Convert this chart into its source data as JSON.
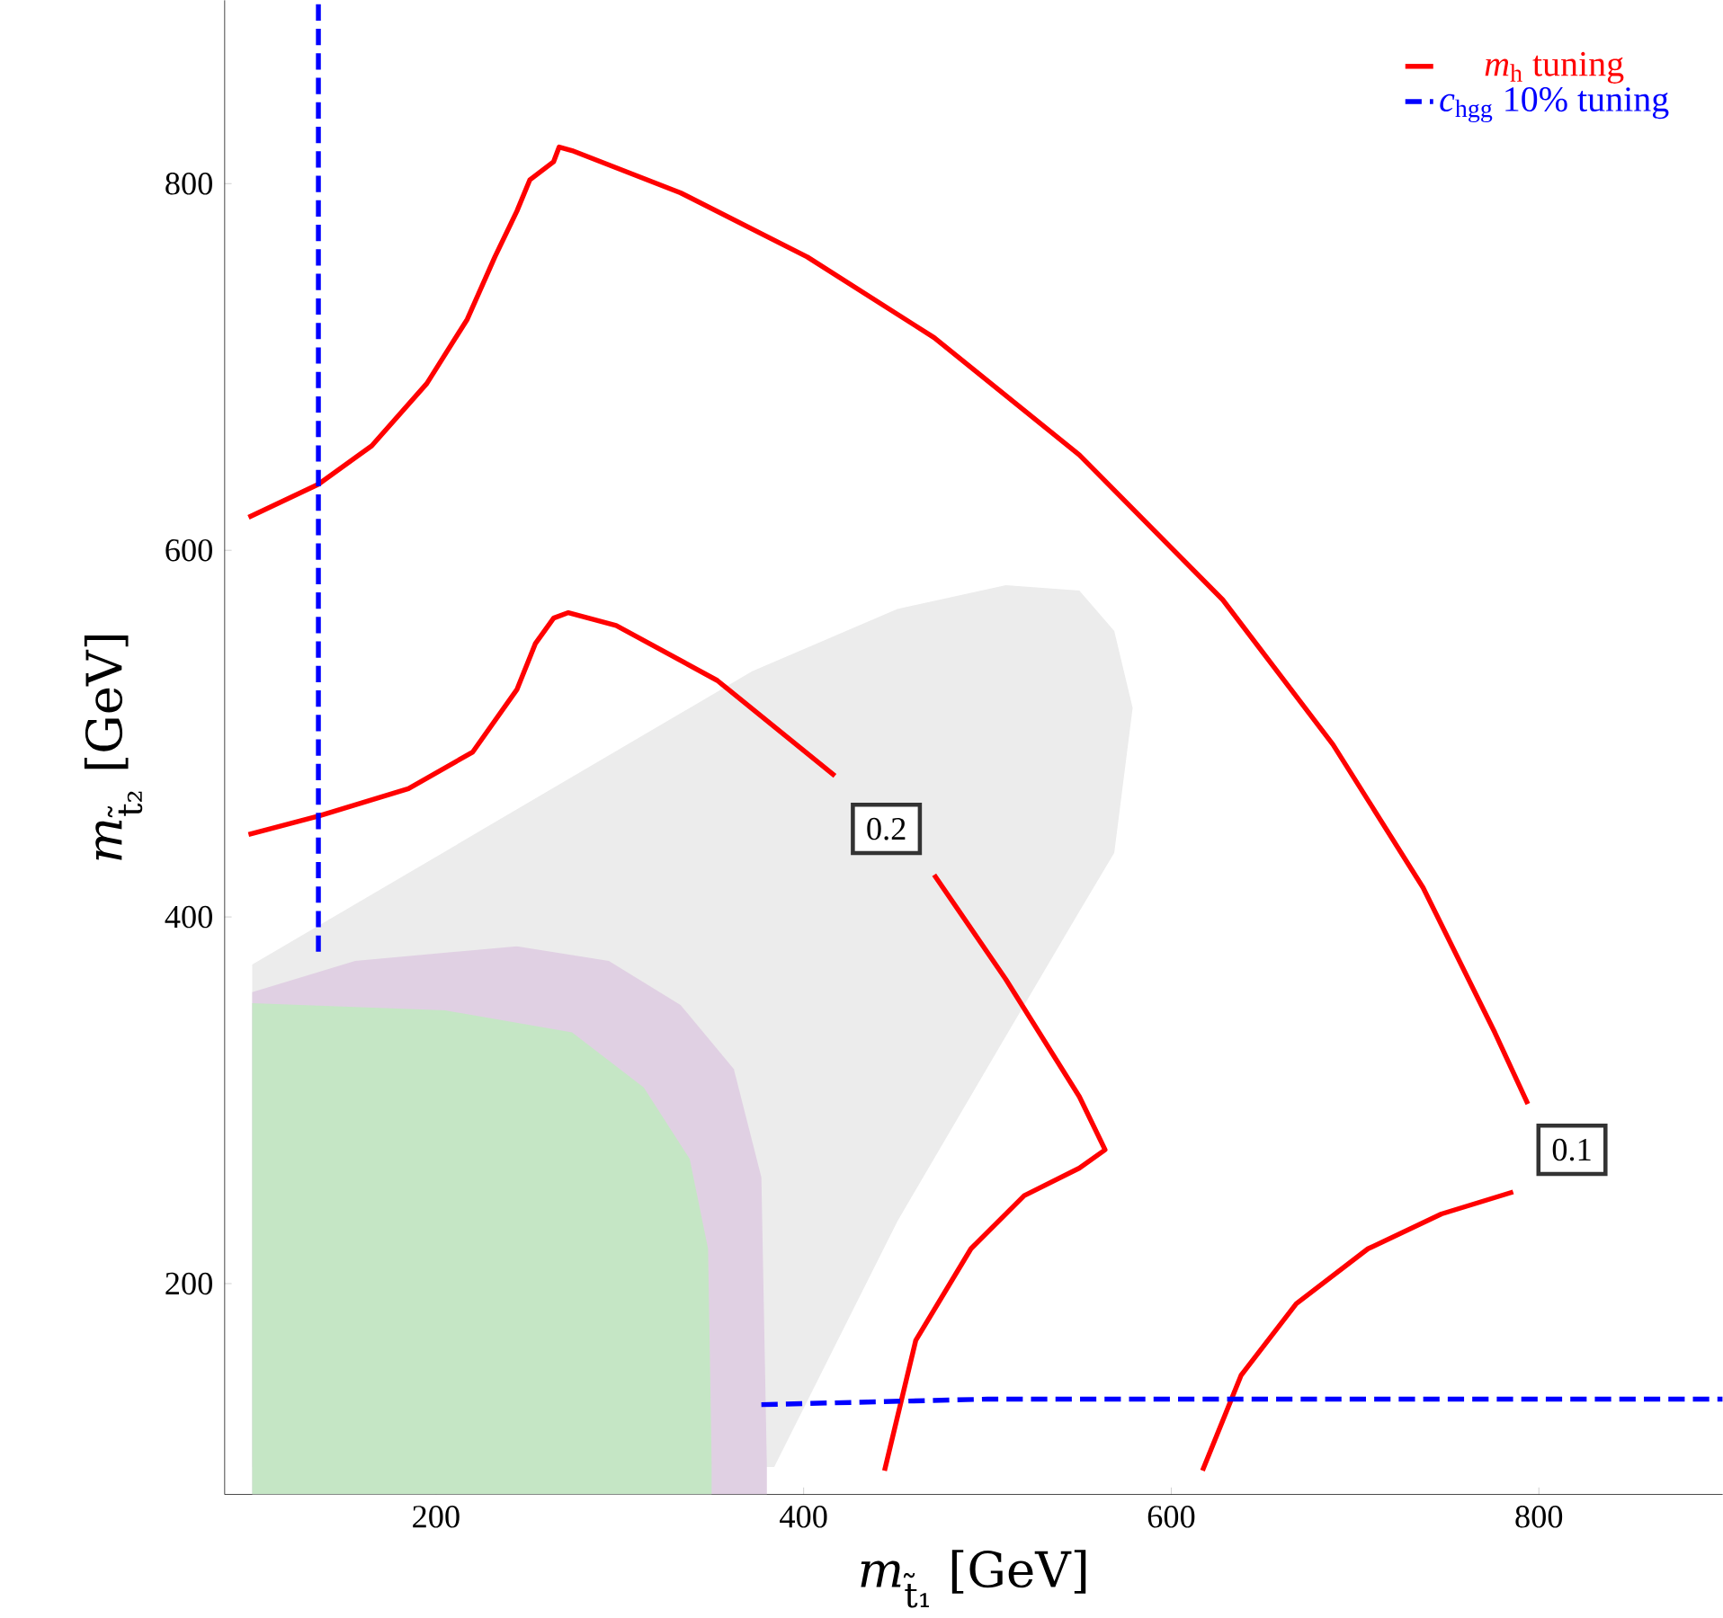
{
  "chart_data": {
    "type": "line",
    "xlabel": "*m*$_{t̃₁}$ [GeV]",
    "ylabel": "*m*$_{t̃₂}$ [GeV]",
    "xlim": [
      85,
      900
    ],
    "ylim": [
      85,
      900
    ],
    "xticks": [
      200,
      400,
      600,
      800
    ],
    "yticks": [
      200,
      400,
      600,
      800
    ],
    "grid": false,
    "legend": "top right",
    "series": [
      {
        "type": "area",
        "color": "#ececec",
        "x": [
          100,
          372,
          451,
          510,
          550,
          569,
          579,
          569,
          550,
          510,
          451,
          384,
          100
        ],
        "values": [
          374,
          534,
          568,
          581,
          578,
          556,
          514,
          435,
          403,
          335,
          234,
          100,
          100
        ]
      },
      {
        "type": "area",
        "color": "#e0d0e3",
        "x": [
          100,
          156,
          244,
          294,
          333,
          362,
          377,
          380
        ],
        "values": [
          359,
          376,
          384,
          376,
          352,
          317,
          258,
          100
        ]
      },
      {
        "type": "area",
        "color": "#c5e6c5",
        "x": [
          100,
          205,
          274,
          313,
          338,
          348,
          350
        ],
        "values": [
          353,
          349,
          337,
          307,
          268,
          219,
          100
        ]
      },
      {
        "name": "*m*$_{h}$ tuning",
        "color": "#ff0000",
        "line_style": "solid",
        "x": [
          98,
          136,
          165,
          195,
          217,
          232,
          244,
          251,
          264,
          267,
          274,
          333,
          402,
          471,
          550,
          628,
          688,
          737,
          776,
          794
        ],
        "values": [
          618,
          636,
          657,
          691,
          726,
          760,
          785,
          802,
          812,
          820,
          818,
          795,
          760,
          716,
          652,
          573,
          494,
          416,
          337,
          298
        ]
      },
      {
        "color": "#ff0000",
        "line_style": "solid",
        "x": [
          786,
          747,
          707,
          668,
          638,
          617
        ],
        "values": [
          250,
          238,
          219,
          189,
          150,
          98
        ]
      },
      {
        "color": "#ff0000",
        "line_style": "solid",
        "x": [
          98,
          136,
          185,
          220,
          244,
          254,
          264,
          272,
          298,
          353,
          417
        ],
        "values": [
          445,
          455,
          470,
          490,
          524,
          549,
          563,
          566,
          559,
          529,
          477
        ]
      },
      {
        "color": "#ff0000",
        "line_style": "solid",
        "x": [
          471,
          510,
          550,
          564,
          550,
          520,
          491,
          461,
          444
        ],
        "values": [
          423,
          366,
          302,
          273,
          263,
          248,
          219,
          169,
          98
        ]
      },
      {
        "name": "*c*$_{hgg}$ 10% tuning",
        "color": "#0000ff",
        "line_style": "dashed",
        "x": [
          136,
          136
        ],
        "values": [
          381,
          898
        ]
      },
      {
        "color": "#0000ff",
        "line_style": "dashed",
        "x": [
          377,
          500,
          900
        ],
        "values": [
          134,
          137,
          137
        ]
      }
    ],
    "annotations": [
      {
        "text": "0.2",
        "x": 445,
        "y": 448
      },
      {
        "text": "0.1",
        "x": 818,
        "y": 273
      }
    ]
  }
}
